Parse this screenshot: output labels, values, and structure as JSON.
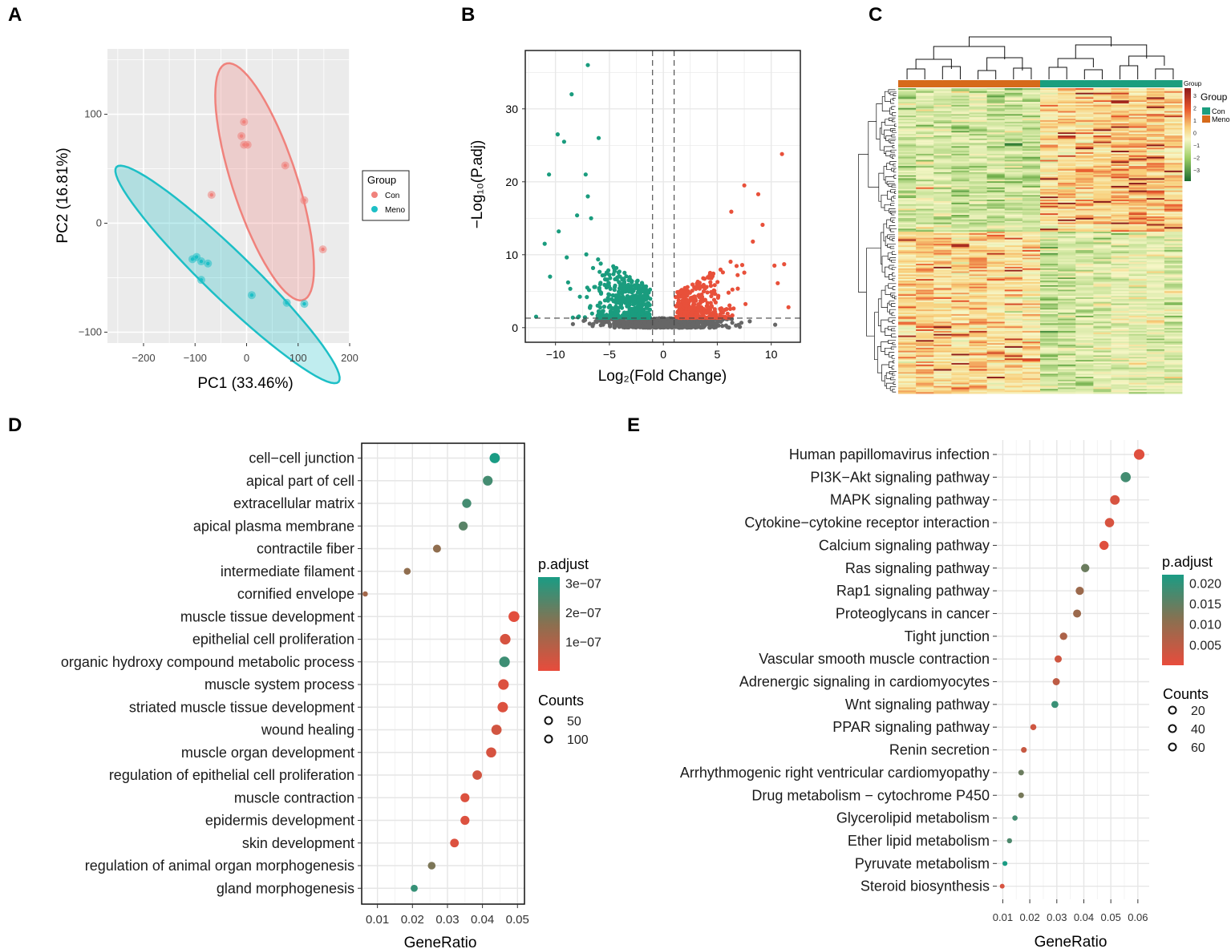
{
  "panels": {
    "A": {
      "letter": "A",
      "chart_data": {
        "type": "scatter",
        "xlabel": "PC1 (33.46%)",
        "ylabel": "PC2 (16.81%)",
        "xlim": [
          -270,
          200
        ],
        "ylim": [
          -110,
          160
        ],
        "xticks": [
          -200,
          -100,
          0,
          100,
          200
        ],
        "yticks": [
          -100,
          0,
          100
        ],
        "legend": {
          "title": "Group",
          "entries": [
            "Con",
            "Meno"
          ],
          "colors": [
            "#f0827c",
            "#1dbfc6"
          ],
          "placement": "right"
        },
        "series": [
          {
            "name": "Con",
            "color": "#f0827c",
            "points": [
              [
                -5,
                93
              ],
              [
                -10,
                80
              ],
              [
                -5,
                72
              ],
              [
                2,
                72
              ],
              [
                -68,
                26
              ],
              [
                75,
                53
              ],
              [
                112,
                21
              ],
              [
                148,
                -24
              ]
            ],
            "ellipse": {
              "cx": 35,
              "cy": 38,
              "rx": 135,
              "ry": 53,
              "angle": -50
            }
          },
          {
            "name": "Meno",
            "color": "#1dbfc6",
            "points": [
              [
                -105,
                -33
              ],
              [
                -97,
                -31
              ],
              [
                -88,
                -35
              ],
              [
                -75,
                -37
              ],
              [
                -88,
                -52
              ],
              [
                10,
                -66
              ],
              [
                78,
                -73
              ],
              [
                112,
                -74
              ]
            ],
            "ellipse": {
              "cx": -37,
              "cy": -47,
              "rx": 238,
              "ry": 27,
              "angle": -24
            }
          }
        ]
      }
    },
    "B": {
      "letter": "B",
      "chart_data": {
        "type": "scatter",
        "xlabel": "Log₂(Fold Change)",
        "ylabel": "−Log₁₀(P.adj)",
        "xlim": [
          -12.8,
          12.7
        ],
        "ylim": [
          -2,
          38
        ],
        "xticks": [
          -10,
          -5,
          0,
          5,
          10
        ],
        "yticks": [
          0,
          10,
          20,
          30
        ],
        "thresholds": {
          "fc": [
            -1,
            1
          ],
          "padj": 1.3
        },
        "colors": {
          "down": "#1a9c7e",
          "up": "#e8503a",
          "ns": "#666666"
        },
        "highlight_points": [
          [
            -7,
            36
          ],
          [
            -8.5,
            32
          ],
          [
            -9.8,
            26.5
          ],
          [
            -9.2,
            25.5
          ],
          [
            -6,
            26
          ],
          [
            -10.6,
            21
          ],
          [
            -7.2,
            21
          ],
          [
            -11,
            11.5
          ],
          [
            -10.5,
            7
          ],
          [
            -11.8,
            1.5
          ],
          [
            -6.7,
            15
          ],
          [
            -8,
            15.4
          ],
          [
            -9.7,
            13.2
          ],
          [
            -7,
            18
          ],
          [
            11,
            23.8
          ],
          [
            7.5,
            19.5
          ],
          [
            8.8,
            18.3
          ],
          [
            6.3,
            15.9
          ],
          [
            8.3,
            11.8
          ],
          [
            11.2,
            8.7
          ],
          [
            9.2,
            14.1
          ],
          [
            10.3,
            8.5
          ],
          [
            11.6,
            2.8
          ],
          [
            10.6,
            6.1
          ]
        ]
      }
    },
    "C": {
      "letter": "C",
      "chart_data": {
        "type": "heatmap",
        "rows": 200,
        "samples": 16,
        "column_groups": [
          "Meno",
          "Meno",
          "Meno",
          "Meno",
          "Meno",
          "Meno",
          "Meno",
          "Meno",
          "Con",
          "Con",
          "Con",
          "Con",
          "Con",
          "Con",
          "Con",
          "Con"
        ],
        "legend": {
          "title_small": "Group",
          "title": "Group",
          "group_entries": [
            "Con",
            "Meno"
          ],
          "group_colors": [
            "#1b9e7e",
            "#d66a1a"
          ],
          "scale_ticks": [
            "3",
            "2",
            "1",
            "0",
            "−1",
            "−2",
            "−3"
          ],
          "scale": {
            "min": -3,
            "max": 3,
            "colors": [
              "#1b6b30",
              "#f8f7c0",
              "#8b1a1a"
            ]
          }
        }
      }
    },
    "D": {
      "letter": "D",
      "chart_data": {
        "type": "scatter",
        "subtype": "dotplot",
        "xlabel": "GeneRatio",
        "xlim": [
          0.0055,
          0.052
        ],
        "xticks": [
          0.01,
          0.02,
          0.03,
          0.04,
          0.05
        ],
        "xtick_labels": [
          "0.01",
          "0.02",
          "0.03",
          "0.04",
          "0.05"
        ],
        "terms": [
          "cell−cell junction",
          "apical part of cell",
          "extracellular matrix",
          "apical plasma membrane",
          "contractile fiber",
          "intermediate filament",
          "cornified envelope",
          "muscle tissue development",
          "epithelial cell proliferation",
          "organic hydroxy compound metabolic process",
          "muscle system process",
          "striated muscle tissue development",
          "wound healing",
          "muscle organ development",
          "regulation of epithelial cell proliferation",
          "muscle contraction",
          "epidermis development",
          "skin development",
          "regulation of animal organ morphogenesis",
          "gland morphogenesis"
        ],
        "gene_ratio": [
          0.0435,
          0.0415,
          0.0355,
          0.0345,
          0.027,
          0.0185,
          0.0065,
          0.049,
          0.0465,
          0.0463,
          0.046,
          0.0458,
          0.044,
          0.0425,
          0.0385,
          0.035,
          0.035,
          0.032,
          0.0255,
          0.0205
        ],
        "counts": [
          105,
          99,
          85,
          82,
          65,
          44,
          16,
          118,
          112,
          111,
          111,
          110,
          106,
          102,
          92,
          84,
          84,
          77,
          61,
          49
        ],
        "p_adjust": [
          3.2e-07,
          2.6e-07,
          2.6e-07,
          2.3e-07,
          1.5e-07,
          1.5e-07,
          1.2e-07,
          1e-08,
          3e-08,
          2.7e-07,
          2e-08,
          2e-08,
          4e-08,
          3e-08,
          4e-08,
          2e-08,
          2e-08,
          2e-08,
          1.8e-07,
          2.8e-07
        ],
        "color_legend": {
          "title": "p.adjust",
          "range": [
            0,
            3.2e-07
          ],
          "ticks": [
            3e-07,
            2e-07,
            1e-07
          ],
          "tick_labels": [
            "3e−07",
            "2e−07",
            "1e−07"
          ]
        },
        "size_legend": {
          "title": "Counts",
          "values": [
            50,
            100
          ]
        }
      }
    },
    "E": {
      "letter": "E",
      "chart_data": {
        "type": "scatter",
        "subtype": "dotplot",
        "xlabel": "GeneRatio",
        "xlim": [
          0.0078,
          0.0642
        ],
        "xticks": [
          0.01,
          0.02,
          0.03,
          0.04,
          0.05,
          0.06
        ],
        "xtick_labels": [
          "0.01",
          "0.02",
          "0.03",
          "0.04",
          "0.05",
          "0.06"
        ],
        "terms": [
          "Human papillomavirus infection",
          "PI3K−Akt signaling pathway",
          "MAPK signaling pathway",
          "Cytokine−cytokine receptor interaction",
          "Calcium signaling pathway",
          "Ras signaling pathway",
          "Rap1 signaling pathway",
          "Proteoglycans in cancer",
          "Tight junction",
          "Vascular smooth muscle contraction",
          "Adrenergic signaling in cardiomyocytes",
          "Wnt signaling pathway",
          "PPAR signaling pathway",
          "Renin secretion",
          "Arrhythmogenic right ventricular cardiomyopathy",
          "Drug metabolism − cytochrome P450",
          "Glycerolipid metabolism",
          "Ether lipid metabolism",
          "Pyruvate metabolism",
          "Steroid biosynthesis"
        ],
        "gene_ratio": [
          0.0605,
          0.0555,
          0.0515,
          0.0495,
          0.0475,
          0.0405,
          0.0385,
          0.0375,
          0.0325,
          0.0305,
          0.0298,
          0.0293,
          0.0213,
          0.0178,
          0.0168,
          0.0168,
          0.0145,
          0.0125,
          0.0108,
          0.0098
        ],
        "counts": [
          62,
          57,
          53,
          51,
          49,
          42,
          40,
          39,
          34,
          32,
          31,
          30,
          22,
          18,
          17,
          17,
          15,
          13,
          11,
          10
        ],
        "p_adjust": [
          0.001,
          0.018,
          0.002,
          0.002,
          0.001,
          0.014,
          0.009,
          0.009,
          0.007,
          0.003,
          0.005,
          0.019,
          0.003,
          0.004,
          0.014,
          0.013,
          0.018,
          0.017,
          0.022,
          0.002
        ],
        "color_legend": {
          "title": "p.adjust",
          "range": [
            0.0,
            0.022
          ],
          "ticks": [
            0.02,
            0.015,
            0.01,
            0.005
          ],
          "tick_labels": [
            "0.020",
            "0.015",
            "0.010",
            "0.005"
          ]
        },
        "size_legend": {
          "title": "Counts",
          "values": [
            20,
            40,
            60
          ]
        }
      }
    }
  }
}
